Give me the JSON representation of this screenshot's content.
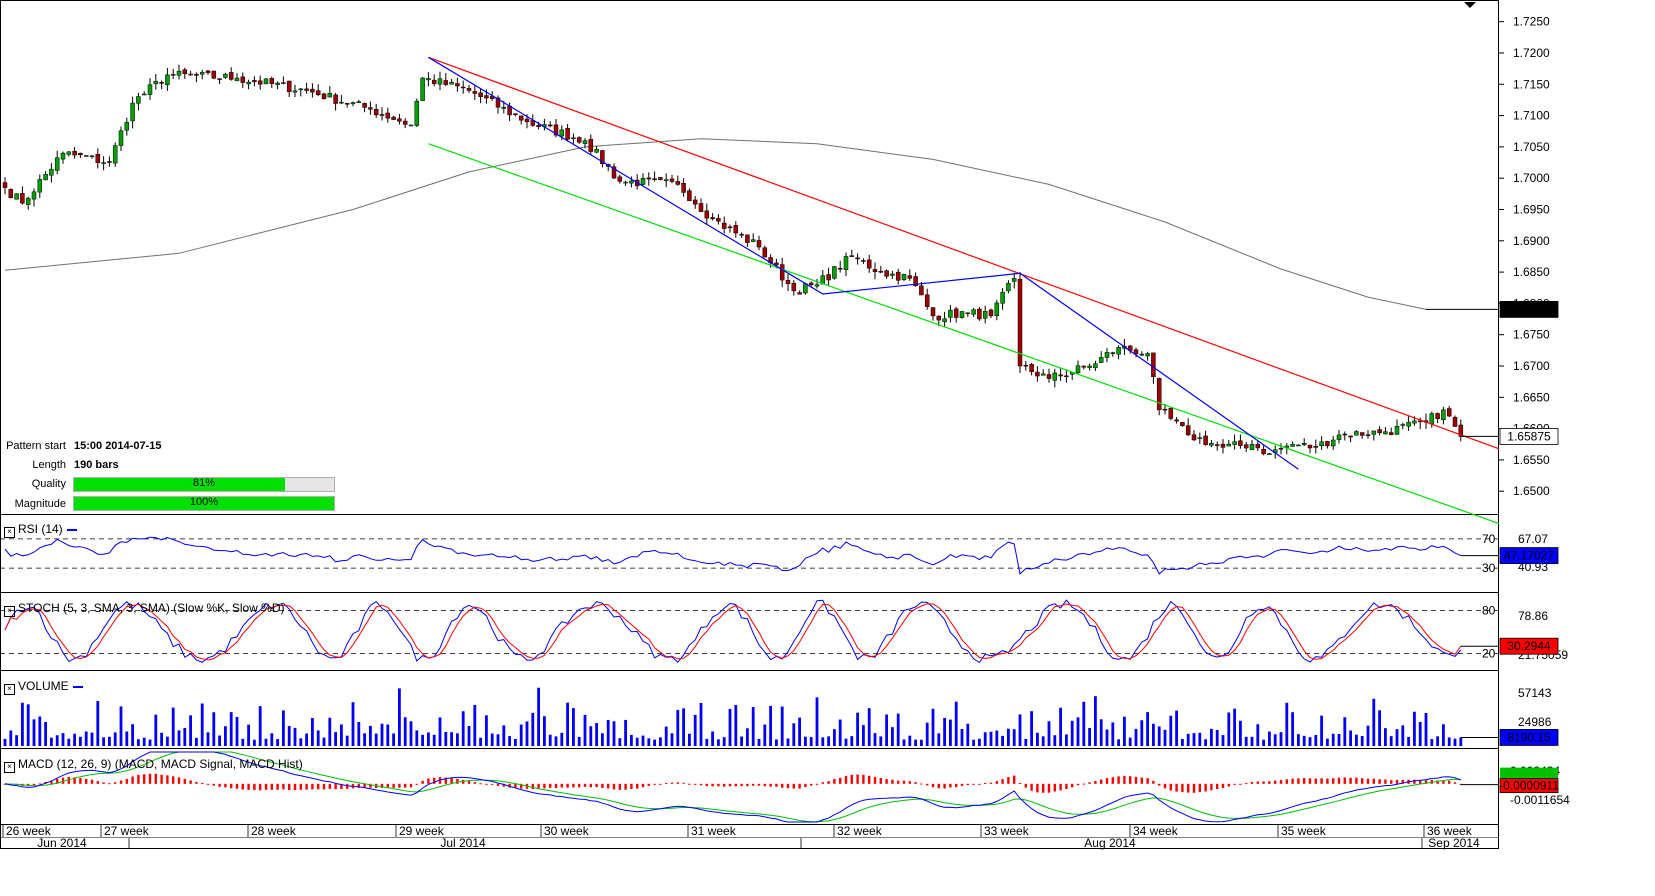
{
  "pattern_info": {
    "start_label": "Pattern start",
    "start_value": "15:00 2014-07-15",
    "length_label": "Length",
    "length_value": "190 bars",
    "quality_label": "Quality",
    "quality_value": "81%",
    "quality_fraction": 0.81,
    "magnitude_label": "Magnitude",
    "magnitude_value": "100%",
    "magnitude_fraction": 1.0
  },
  "panels": {
    "rsi_title": "RSI (14)",
    "stoch_title": "STOCH (5, 3, SMA, 3, SMA) (Slow %K, Slow %D)",
    "volume_title": "VOLUME",
    "macd_title": "MACD (12, 26, 9) (MACD, MACD Signal, MACD Hist)"
  },
  "colors": {
    "candle_up": "#00a000",
    "candle_down": "#a00000",
    "resistance": "#ff0000",
    "support": "#00e000",
    "zigzag": "#0000ff",
    "ma": "#707070",
    "rsi": "#0000ff",
    "stoch_k": "#0000ff",
    "stoch_d": "#ff0000",
    "volume": "#0000ff",
    "macd": "#0000ff",
    "macd_signal": "#00c000",
    "macd_hist": "#ff0000"
  },
  "chart_data": {
    "type": "candlestick",
    "price_axis": {
      "ticks": [
        "1.7250",
        "1.7200",
        "1.7150",
        "1.7100",
        "1.7050",
        "1.7000",
        "1.6950",
        "1.6900",
        "1.6850",
        "1.6800",
        "1.6750",
        "1.6700",
        "1.6650",
        "1.6600",
        "1.6550",
        "1.6500"
      ],
      "range": [
        1.647,
        1.7275
      ],
      "ma_label": "1.67904",
      "ma_value": 1.67904,
      "last_label": "1.65875",
      "last_value": 1.65875
    },
    "week_labels": [
      "26 week",
      "27 week",
      "28 week",
      "29 week",
      "30 week",
      "31 week",
      "32 week",
      "33 week",
      "34 week",
      "35 week",
      "36 week"
    ],
    "month_labels": [
      "Jun 2014",
      "Jul 2014",
      "Aug 2014",
      "Sep 2014"
    ],
    "price_keypoints": [
      {
        "bar": 0,
        "close": 1.6985
      },
      {
        "bar": 3,
        "close": 1.696
      },
      {
        "bar": 10,
        "close": 1.704
      },
      {
        "bar": 18,
        "close": 1.7025
      },
      {
        "bar": 22,
        "close": 1.712
      },
      {
        "bar": 28,
        "close": 1.7165
      },
      {
        "bar": 40,
        "close": 1.716
      },
      {
        "bar": 52,
        "close": 1.714
      },
      {
        "bar": 63,
        "close": 1.711
      },
      {
        "bar": 70,
        "close": 1.7085
      },
      {
        "bar": 72,
        "close": 1.716
      },
      {
        "bar": 80,
        "close": 1.714
      },
      {
        "bar": 90,
        "close": 1.709
      },
      {
        "bar": 100,
        "close": 1.706
      },
      {
        "bar": 106,
        "close": 1.6995
      },
      {
        "bar": 116,
        "close": 1.699
      },
      {
        "bar": 122,
        "close": 1.6935
      },
      {
        "bar": 130,
        "close": 1.689
      },
      {
        "bar": 136,
        "close": 1.682
      },
      {
        "bar": 140,
        "close": 1.683
      },
      {
        "bar": 146,
        "close": 1.6875
      },
      {
        "bar": 151,
        "close": 1.685
      },
      {
        "bar": 156,
        "close": 1.684
      },
      {
        "bar": 160,
        "close": 1.678
      },
      {
        "bar": 166,
        "close": 1.6785
      },
      {
        "bar": 170,
        "close": 1.678
      },
      {
        "bar": 174,
        "close": 1.684
      },
      {
        "bar": 175,
        "close": 1.67
      },
      {
        "bar": 180,
        "close": 1.668
      },
      {
        "bar": 187,
        "close": 1.67
      },
      {
        "bar": 192,
        "close": 1.673
      },
      {
        "bar": 197,
        "close": 1.672
      },
      {
        "bar": 199,
        "close": 1.663
      },
      {
        "bar": 204,
        "close": 1.659
      },
      {
        "bar": 210,
        "close": 1.657
      },
      {
        "bar": 215,
        "close": 1.6575
      },
      {
        "bar": 218,
        "close": 1.656
      },
      {
        "bar": 222,
        "close": 1.6575
      },
      {
        "bar": 226,
        "close": 1.657
      },
      {
        "bar": 230,
        "close": 1.659
      },
      {
        "bar": 238,
        "close": 1.6595
      },
      {
        "bar": 245,
        "close": 1.661
      },
      {
        "bar": 248,
        "close": 1.663
      },
      {
        "bar": 251,
        "close": 1.65875
      }
    ],
    "resistance_line": [
      {
        "bar": 73,
        "price": 1.7193
      },
      {
        "bar": 251,
        "price": 1.659
      }
    ],
    "support_line": [
      {
        "bar": 73,
        "price": 1.7055
      },
      {
        "bar": 251,
        "price": 1.647
      }
    ],
    "zigzag": [
      {
        "bar": 73,
        "price": 1.7193
      },
      {
        "bar": 141,
        "price": 1.6815
      },
      {
        "bar": 175,
        "price": 1.6848
      },
      {
        "bar": 223,
        "price": 1.6535
      }
    ],
    "moving_average": [
      {
        "bar": 0,
        "price": 1.6853
      },
      {
        "bar": 30,
        "price": 1.688
      },
      {
        "bar": 60,
        "price": 1.695
      },
      {
        "bar": 80,
        "price": 1.701
      },
      {
        "bar": 100,
        "price": 1.705
      },
      {
        "bar": 120,
        "price": 1.7063
      },
      {
        "bar": 140,
        "price": 1.7055
      },
      {
        "bar": 160,
        "price": 1.703
      },
      {
        "bar": 180,
        "price": 1.699
      },
      {
        "bar": 200,
        "price": 1.693
      },
      {
        "bar": 220,
        "price": 1.6855
      },
      {
        "bar": 235,
        "price": 1.681
      },
      {
        "bar": 245,
        "price": 1.67904
      }
    ],
    "rsi": {
      "levels": [
        70,
        30
      ],
      "level_labels": [
        "70",
        "30"
      ],
      "axis_label": "67.07",
      "hidden_label": "40.93",
      "last_label": "47.17027",
      "last_value": 47.17
    },
    "stoch": {
      "levels": [
        80,
        20
      ],
      "level_labels": [
        "80",
        "20"
      ],
      "axis_label": "78.86",
      "hidden_label": "21.75059",
      "last_label": "30.2944",
      "last_value": 30.29
    },
    "volume": {
      "axis_labels": [
        "57143",
        "24986"
      ],
      "last_label": "8190.15",
      "last_value": 8190.15
    },
    "macd": {
      "axis_labels": [
        "0.002434",
        "-0.0011654"
      ],
      "last_label": "-0.0000911",
      "last_value": -9.11e-05
    }
  }
}
